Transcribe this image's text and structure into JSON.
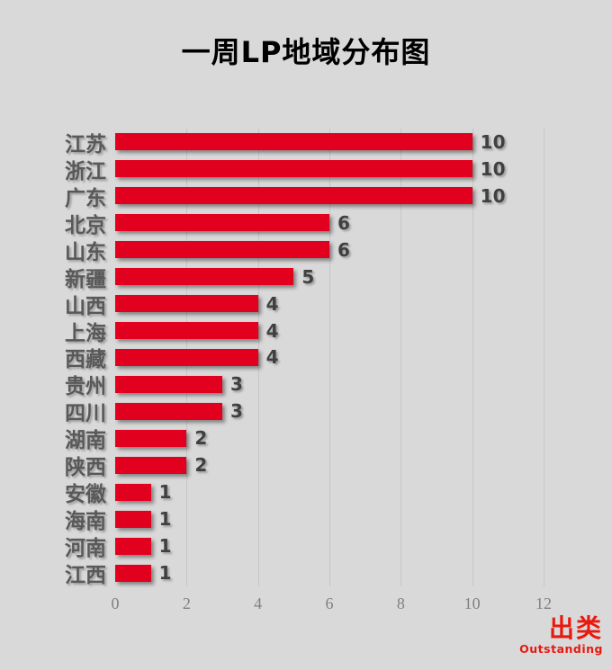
{
  "title": "一周LP地域分布图",
  "colors": {
    "background": "#d9d9d9",
    "bar": "#e1001e",
    "category_label": "#595959",
    "value_label": "#404040",
    "gridline": "#c6c6c6",
    "tick_label": "#808080",
    "logo": "#e8190f",
    "title": "#000000"
  },
  "logo": {
    "name": "出类",
    "subtitle": "Outstanding"
  },
  "chart_data": {
    "type": "bar",
    "orientation": "horizontal",
    "title": "一周LP地域分布图",
    "categories": [
      "江苏",
      "浙江",
      "广东",
      "北京",
      "山东",
      "新疆",
      "山西",
      "上海",
      "西藏",
      "贵州",
      "四川",
      "湖南",
      "陕西",
      "安徽",
      "海南",
      "河南",
      "江西"
    ],
    "values": [
      10,
      10,
      10,
      6,
      6,
      5,
      4,
      4,
      4,
      3,
      3,
      2,
      2,
      1,
      1,
      1,
      1
    ],
    "xlabel": "",
    "ylabel": "",
    "xlim": [
      0,
      12
    ],
    "xticks": [
      0,
      2,
      4,
      6,
      8,
      10,
      12
    ],
    "grid": true,
    "data_labels": true,
    "legend": false
  }
}
